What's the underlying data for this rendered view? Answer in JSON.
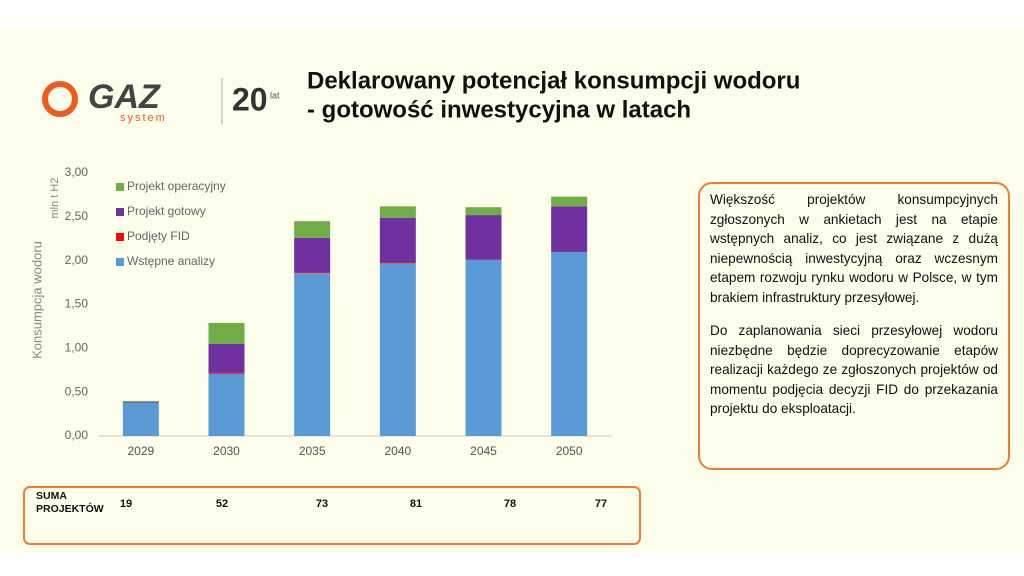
{
  "header": {
    "title_line1": "Deklarowany potencjał konsumpcji wodoru",
    "title_line2": "- gotowość inwestycyjna w latach",
    "logo_brand": "GAZ",
    "logo_sub": "system",
    "logo_years": "20",
    "logo_years_unit": "lat"
  },
  "chart_data": {
    "type": "stacked-bar",
    "y_label": "Konsumpcja wodoru",
    "y_unit": "mln t H2",
    "categories": [
      "2029",
      "2030",
      "2035",
      "2040",
      "2045",
      "2050"
    ],
    "series": [
      {
        "name": "Wstępne analizy",
        "color": "#5b9bd5",
        "values": [
          0.38,
          0.71,
          1.86,
          1.97,
          2.01,
          2.1
        ]
      },
      {
        "name": "Podjęty FID",
        "color": "#ff0000",
        "values": [
          0,
          0.01,
          0.01,
          0.01,
          0,
          0
        ]
      },
      {
        "name": "Projekt gotowy",
        "color": "#7030a0",
        "values": [
          0.01,
          0.33,
          0.39,
          0.51,
          0.51,
          0.52
        ]
      },
      {
        "name": "Projekt operacyjny",
        "color": "#70ad47",
        "values": [
          0.01,
          0.24,
          0.19,
          0.13,
          0.09,
          0.11
        ]
      }
    ],
    "ylim": [
      0,
      3
    ],
    "yticks": [
      {
        "value": 0,
        "label": "0,00"
      },
      {
        "value": 0.5,
        "label": "0,50"
      },
      {
        "value": 1,
        "label": "1,00"
      },
      {
        "value": 1.5,
        "label": "1,50"
      },
      {
        "value": 2,
        "label": "2,00"
      },
      {
        "value": 2.5,
        "label": "2,50"
      },
      {
        "value": 3,
        "label": "3,00"
      }
    ],
    "legend": "upper-left"
  },
  "summary": {
    "label": "SUMA PROJEKTÓW",
    "values": [
      "19",
      "52",
      "73",
      "81",
      "78",
      "77"
    ]
  },
  "note": {
    "paragraphs": [
      "Większość projektów konsumpcyjnych zgłoszonych w ankietach jest na etapie wstępnych analiz, co jest związane z dużą niepewnością inwestycyjną oraz wczesnym etapem rozwoju rynku wodoru w Polsce, w tym brakiem infrastruktury przesyłowej.",
      "Do zaplanowania sieci przesyłowej wodoru niezbędne będzie doprecyzowanie etapów realizacji każdego ze zgłoszonych projektów od momentu podjęcia decyzji FID do przekazania projektu do eksploatacji."
    ]
  }
}
